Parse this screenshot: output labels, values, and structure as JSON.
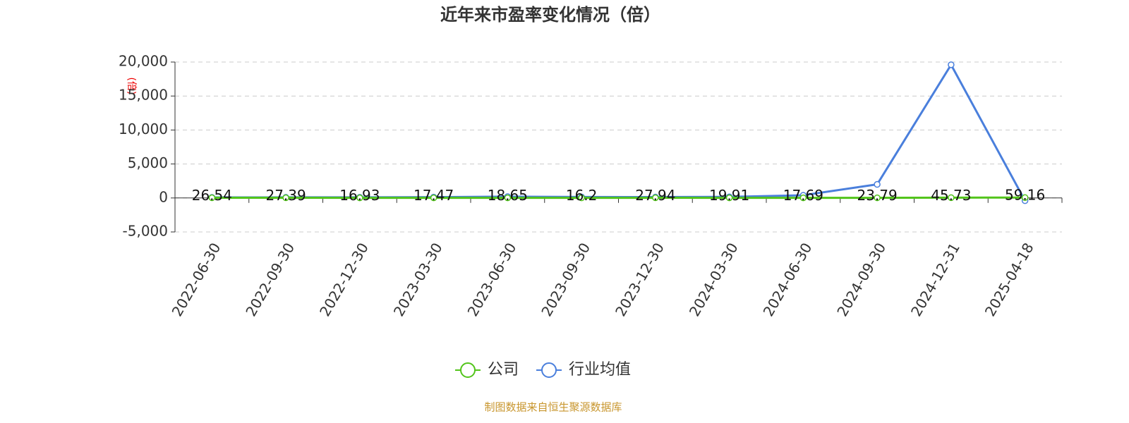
{
  "chart_data": {
    "type": "line",
    "title": "近年来市盈率变化情况（倍）",
    "y_label": "(倍)",
    "categories": [
      "2022-06-30",
      "2022-09-30",
      "2022-12-30",
      "2023-03-30",
      "2023-06-30",
      "2023-09-30",
      "2023-12-30",
      "2024-03-30",
      "2024-06-30",
      "2024-09-30",
      "2024-12-31",
      "2025-04-18"
    ],
    "series": [
      {
        "name": "公司",
        "color": "#52c41a",
        "values": [
          26.54,
          27.39,
          16.93,
          17.47,
          18.65,
          16.2,
          27.94,
          19.91,
          17.69,
          23.79,
          45.73,
          59.16
        ],
        "labels": true
      },
      {
        "name": "行业均值",
        "color": "#4a7fdc",
        "values": [
          80,
          90,
          100,
          120,
          200,
          150,
          130,
          160,
          400,
          2000,
          19600,
          -400
        ],
        "labels": false
      }
    ],
    "ylim": [
      -5000,
      20000
    ],
    "yticks": [
      {
        "value": -5000,
        "label": "-5,000"
      },
      0,
      {
        "value": 5000,
        "label": "5,000"
      },
      {
        "value": 10000,
        "label": "10,000"
      },
      {
        "value": 15000,
        "label": "15,000"
      },
      {
        "value": 20000,
        "label": "20,000"
      }
    ],
    "grid": true,
    "source": "制图数据来自恒生聚源数据库"
  }
}
